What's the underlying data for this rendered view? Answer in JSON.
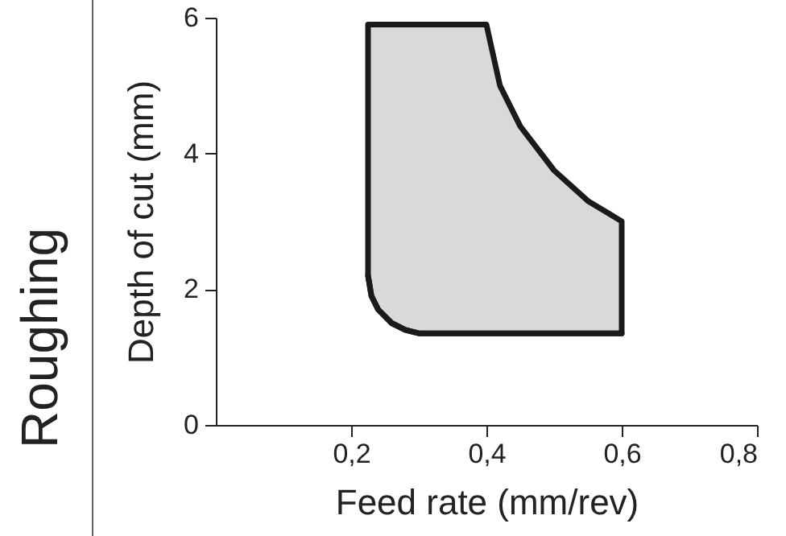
{
  "chart_data": {
    "type": "area",
    "xlabel": "Feed rate (mm/rev)",
    "ylabel": "Depth of cut (mm)",
    "annotations": [
      "Roughing"
    ],
    "xlim": [
      0,
      0.8
    ],
    "xticks": [
      {
        "value": 0.2,
        "label": "0,2"
      },
      {
        "value": 0.4,
        "label": "0,4"
      },
      {
        "value": 0.6,
        "label": "0,6"
      },
      {
        "value": 0.8,
        "label": "0,8"
      }
    ],
    "ylim": [
      0,
      6
    ],
    "yticks": [
      0,
      2,
      4,
      6
    ],
    "grid": false,
    "series": [
      {
        "color": "#d9d9d9",
        "x": [
          0.225,
          0.23,
          0.24,
          0.26,
          0.28,
          0.3,
          0.4,
          0.41,
          0.42,
          0.45,
          0.5,
          0.55,
          0.6
        ],
        "values": [
          5.9,
          5.9,
          5.9,
          5.9,
          5.9,
          5.9,
          5.9,
          5.45,
          5.0,
          4.4,
          3.75,
          3.3,
          3.0
        ]
      },
      {
        "type": "line",
        "color": "#1a1a1a",
        "x": [
          0.225,
          0.23,
          0.24,
          0.26,
          0.28,
          0.3,
          0.4,
          0.41,
          0.42,
          0.45,
          0.5,
          0.55,
          0.6
        ],
        "values": [
          2.2,
          1.9,
          1.7,
          1.5,
          1.4,
          1.35,
          1.35,
          1.35,
          1.35,
          1.35,
          1.35,
          1.35,
          1.35
        ]
      }
    ]
  }
}
